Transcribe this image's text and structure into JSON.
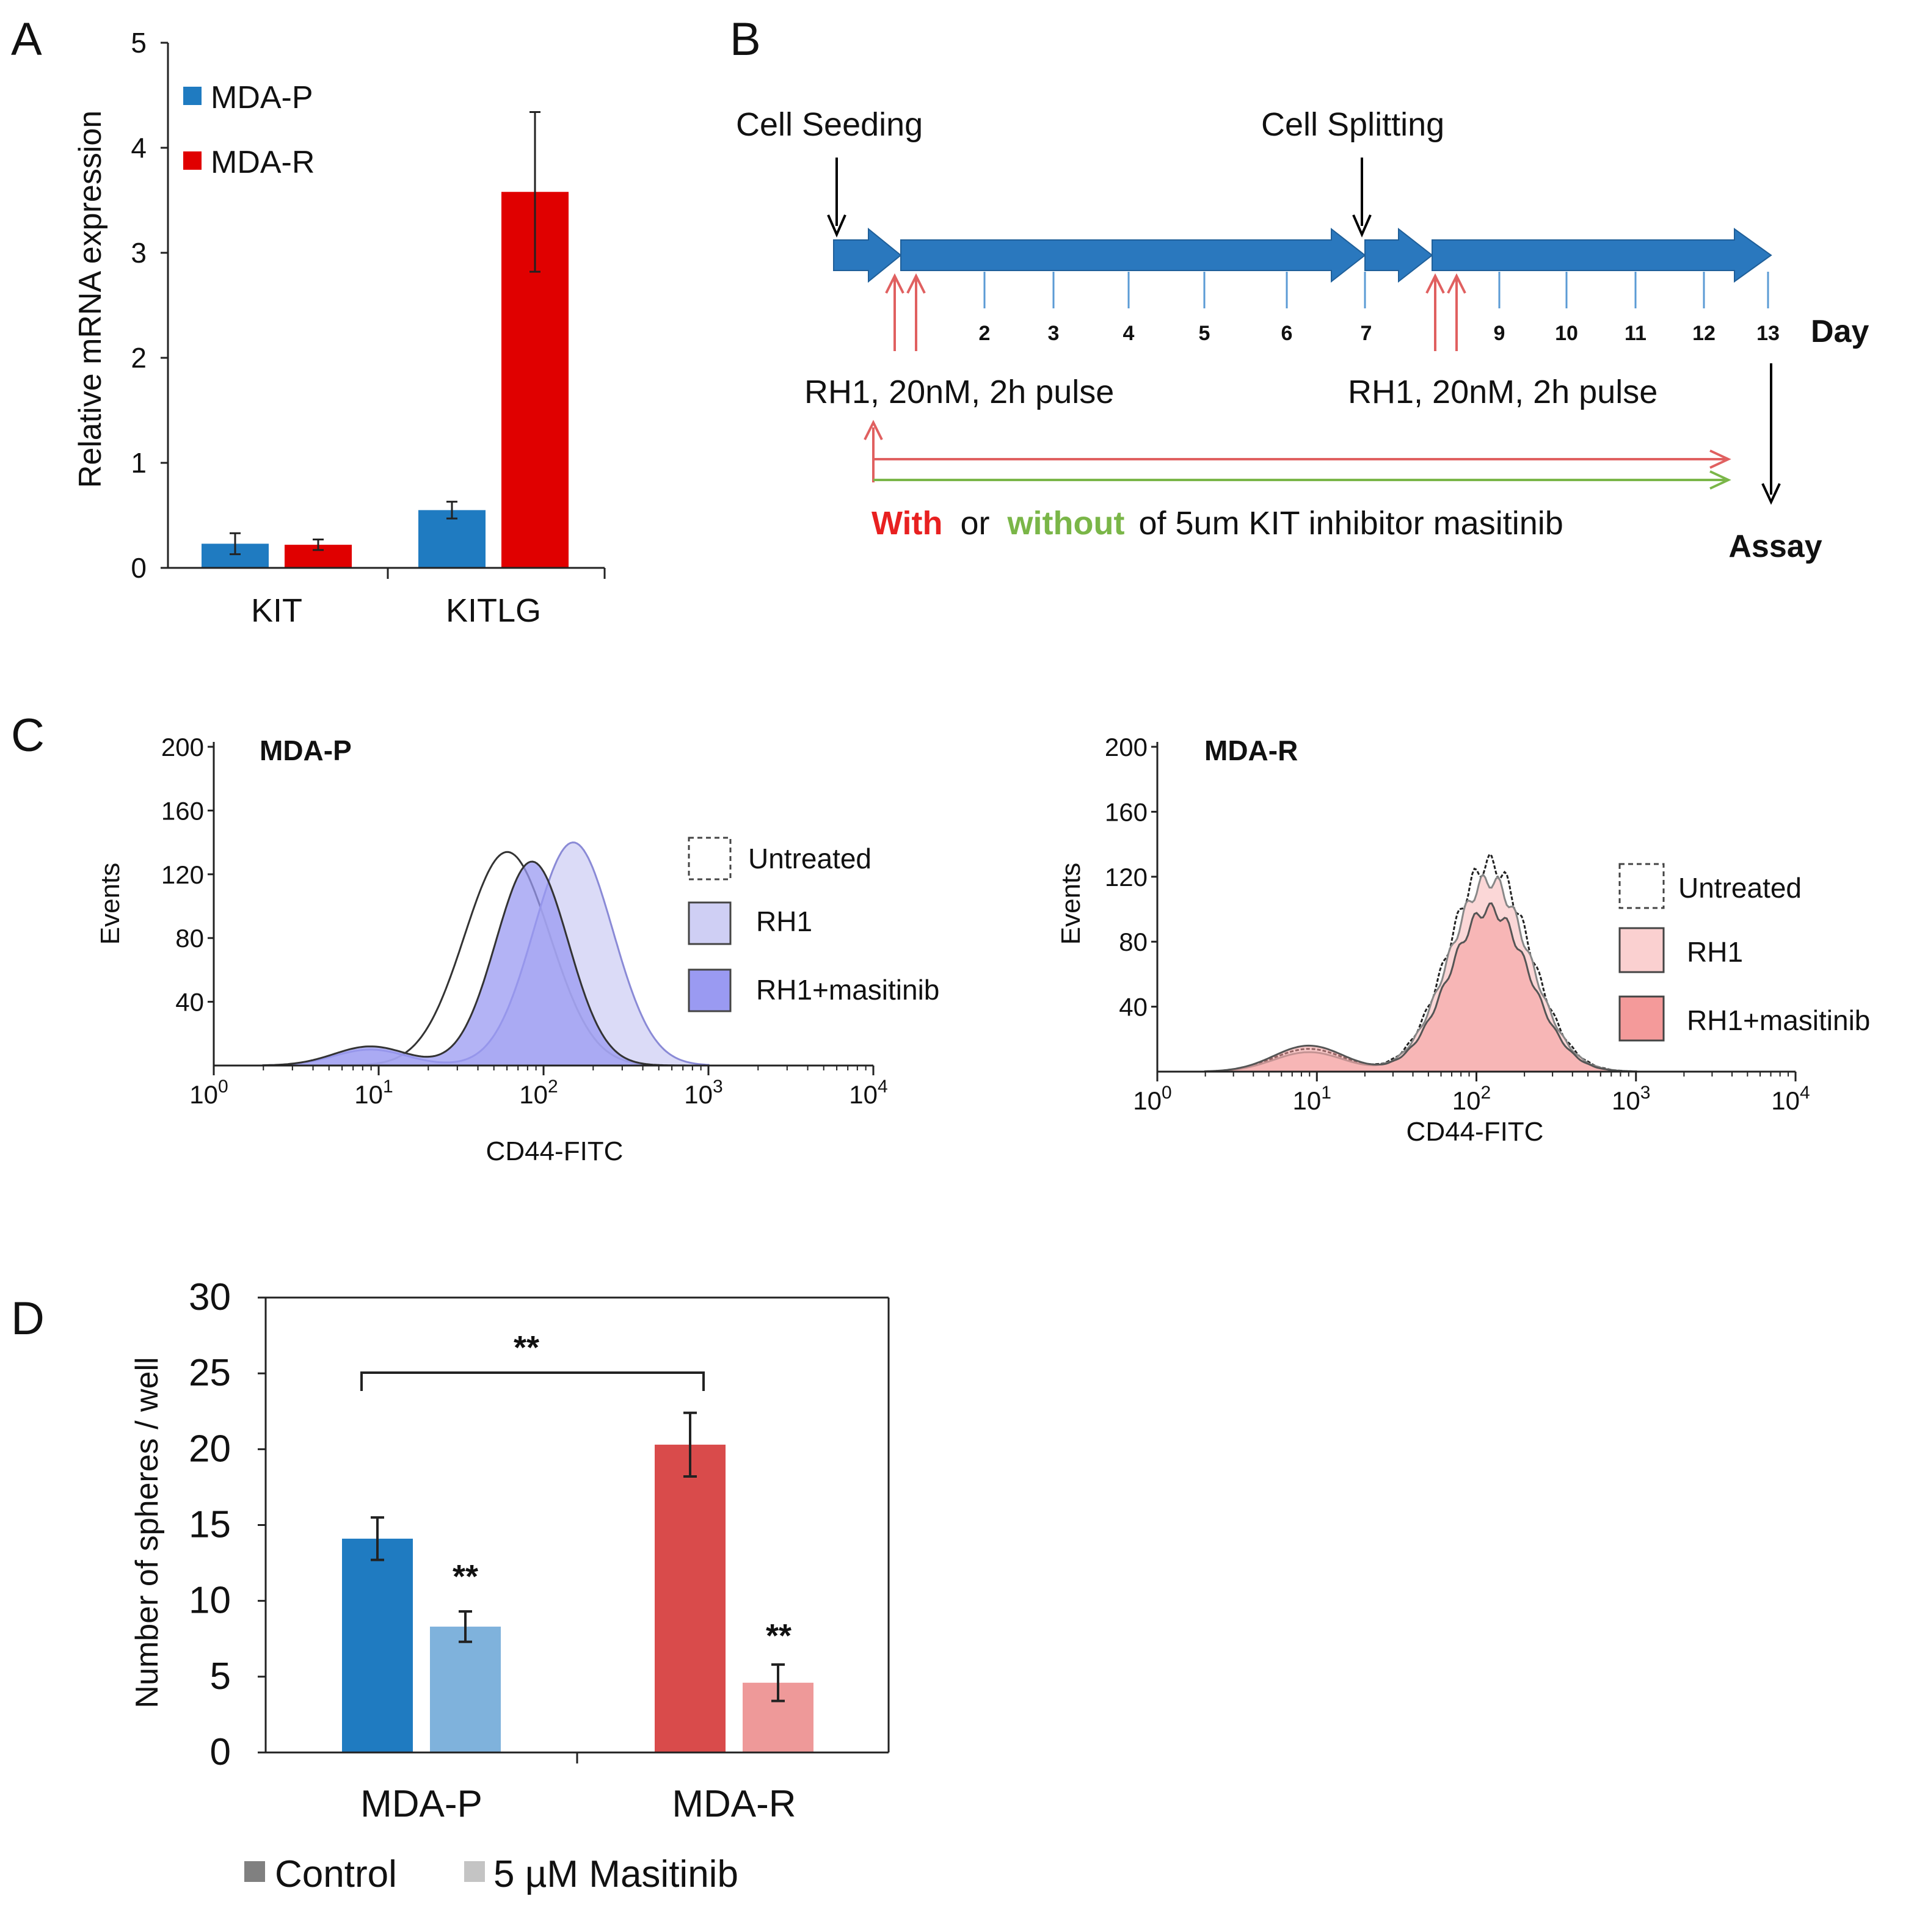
{
  "colors": {
    "blue": "#1f7bc1",
    "red": "#e00000",
    "blue_light": "#7fb2dc",
    "red_d": "#d94b4b",
    "red_light": "#ee9999",
    "arrow_blue": "#2a78be",
    "pulse_red": "#e06060",
    "with_red": "#e82020",
    "without_green": "#7ab648",
    "lav_fill": "#cfcff4",
    "lav_dark": "#9a9af2",
    "pink_fill": "#fad0d0",
    "pink_dark": "#f49a9a"
  },
  "chart_data": [
    {
      "id": "A",
      "type": "bar",
      "panel_label": "A",
      "categories": [
        "KIT",
        "KITLG"
      ],
      "series": [
        {
          "name": "MDA-P",
          "values": [
            0.23,
            0.55
          ],
          "errors": [
            0.1,
            0.08
          ]
        },
        {
          "name": "MDA-R",
          "values": [
            0.22,
            3.58
          ],
          "errors": [
            0.05,
            0.76
          ]
        }
      ],
      "ylabel": "Relative mRNA expression",
      "ylim": [
        0,
        5
      ],
      "yticks": [
        0,
        1,
        2,
        3,
        4,
        5
      ],
      "legend_position": "top-left"
    },
    {
      "id": "C1",
      "type": "area",
      "panel_label": "C",
      "title": "MDA-P",
      "xlabel": "CD44-FITC",
      "ylabel": "Events",
      "xscale": "log",
      "xlim": [
        1,
        10000
      ],
      "xticks": [
        "10",
        "10",
        "10",
        "10",
        "10"
      ],
      "xtick_exponents": [
        "0",
        "1",
        "2",
        "3",
        "4"
      ],
      "ylim": [
        0,
        200
      ],
      "yticks": [
        "200",
        "160",
        "120",
        "80",
        "40"
      ],
      "legend": [
        "Untreated",
        "RH1",
        "RH1+masitinib"
      ],
      "series": [
        {
          "name": "Untreated",
          "peak_log10": 1.78,
          "peak": 134
        },
        {
          "name": "RH1",
          "peak_log10": 2.18,
          "peak": 140
        },
        {
          "name": "RH1+masitinib",
          "peak_log10": 1.93,
          "peak": 128
        }
      ]
    },
    {
      "id": "C2",
      "type": "area",
      "title": "MDA-R",
      "xlabel": "CD44-FITC",
      "ylabel": "Events",
      "xscale": "log",
      "xlim": [
        1,
        10000
      ],
      "xticks": [
        "10",
        "10",
        "10",
        "10",
        "10"
      ],
      "xtick_exponents": [
        "0",
        "1",
        "2",
        "3",
        "4"
      ],
      "ylim": [
        0,
        200
      ],
      "yticks": [
        "200",
        "160",
        "120",
        "80",
        "40"
      ],
      "legend": [
        "Untreated",
        "RH1",
        "RH1+masitinib"
      ],
      "series": [
        {
          "name": "Untreated",
          "peak_log10": 2.08,
          "peak": 128
        },
        {
          "name": "RH1",
          "peak_log10": 2.08,
          "peak": 118
        },
        {
          "name": "RH1+masitinib",
          "peak_log10": 2.08,
          "peak": 100
        }
      ]
    },
    {
      "id": "D",
      "type": "bar",
      "panel_label": "D",
      "categories": [
        "MDA-P",
        "MDA-R"
      ],
      "series": [
        {
          "name": "Control",
          "values": [
            14.1,
            20.3
          ],
          "errors": [
            1.4,
            2.1
          ]
        },
        {
          "name": "5 µM Masitinib",
          "values": [
            8.3,
            4.6
          ],
          "errors": [
            1.0,
            1.2
          ]
        }
      ],
      "ylabel": "Number of spheres / well",
      "ylim": [
        0,
        30
      ],
      "yticks": [
        0,
        5,
        10,
        15,
        20,
        25,
        30
      ],
      "annotations": {
        "bracket": "**",
        "masitinib_p": "**",
        "masitinib_r": "**"
      },
      "legend_position": "bottom"
    }
  ],
  "diagram_b": {
    "panel_label": "B",
    "cell_seeding": "Cell Seeding",
    "cell_splitting": "Cell Splitting",
    "day_ticks": [
      "2",
      "3",
      "4",
      "5",
      "6",
      "7",
      "9",
      "10",
      "11",
      "12",
      "13"
    ],
    "day_label": "Day",
    "pulse_label_1": "RH1, 20nM, 2h pulse",
    "pulse_label_2": "RH1, 20nM, 2h pulse",
    "with_word": "With",
    "or_word": "or",
    "without_word": "without",
    "rest_text": "of 5um KIT inhibitor masitinib",
    "assay": "Assay"
  }
}
